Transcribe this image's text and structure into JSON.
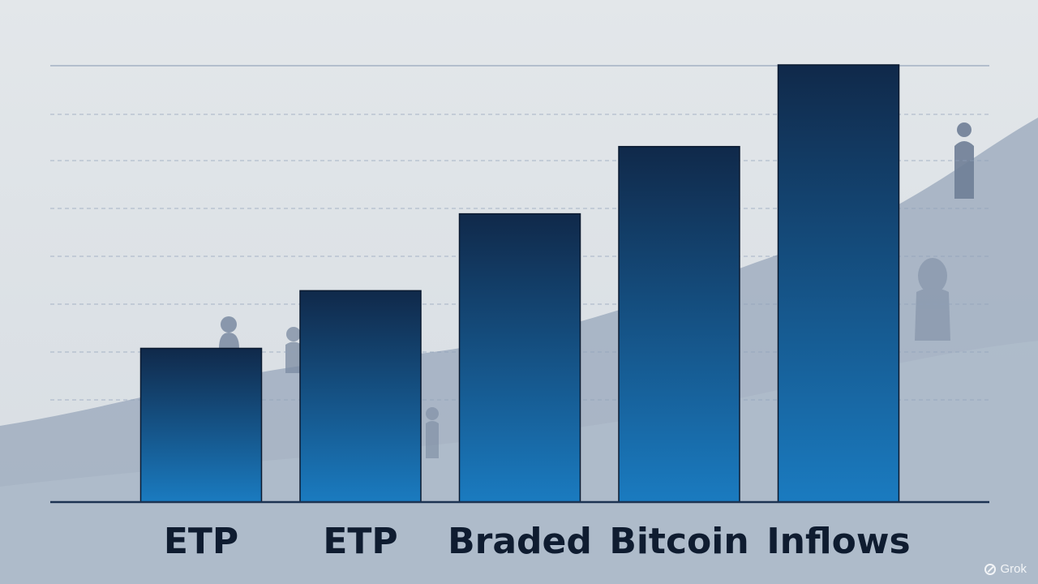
{
  "chart_data": {
    "type": "bar",
    "categories": [
      "ETP",
      "ETP",
      "Braded",
      "Bitcoin",
      "Inflows"
    ],
    "values": [
      3.2,
      4.4,
      6.0,
      7.4,
      9.1
    ],
    "ylim": [
      0,
      9.1
    ],
    "grid": true,
    "legend": "none",
    "title": "",
    "xlabel": "",
    "ylabel": ""
  },
  "colors": {
    "background": "#dfe4e8",
    "bar_top": "#10294a",
    "bar_bottom": "#1a7bc0",
    "axis": "#1c3352",
    "gridline": "#8fa0b8",
    "hill": "#93a3b9"
  },
  "watermark": {
    "text": "Grok",
    "icon": "grok-logo-icon"
  }
}
